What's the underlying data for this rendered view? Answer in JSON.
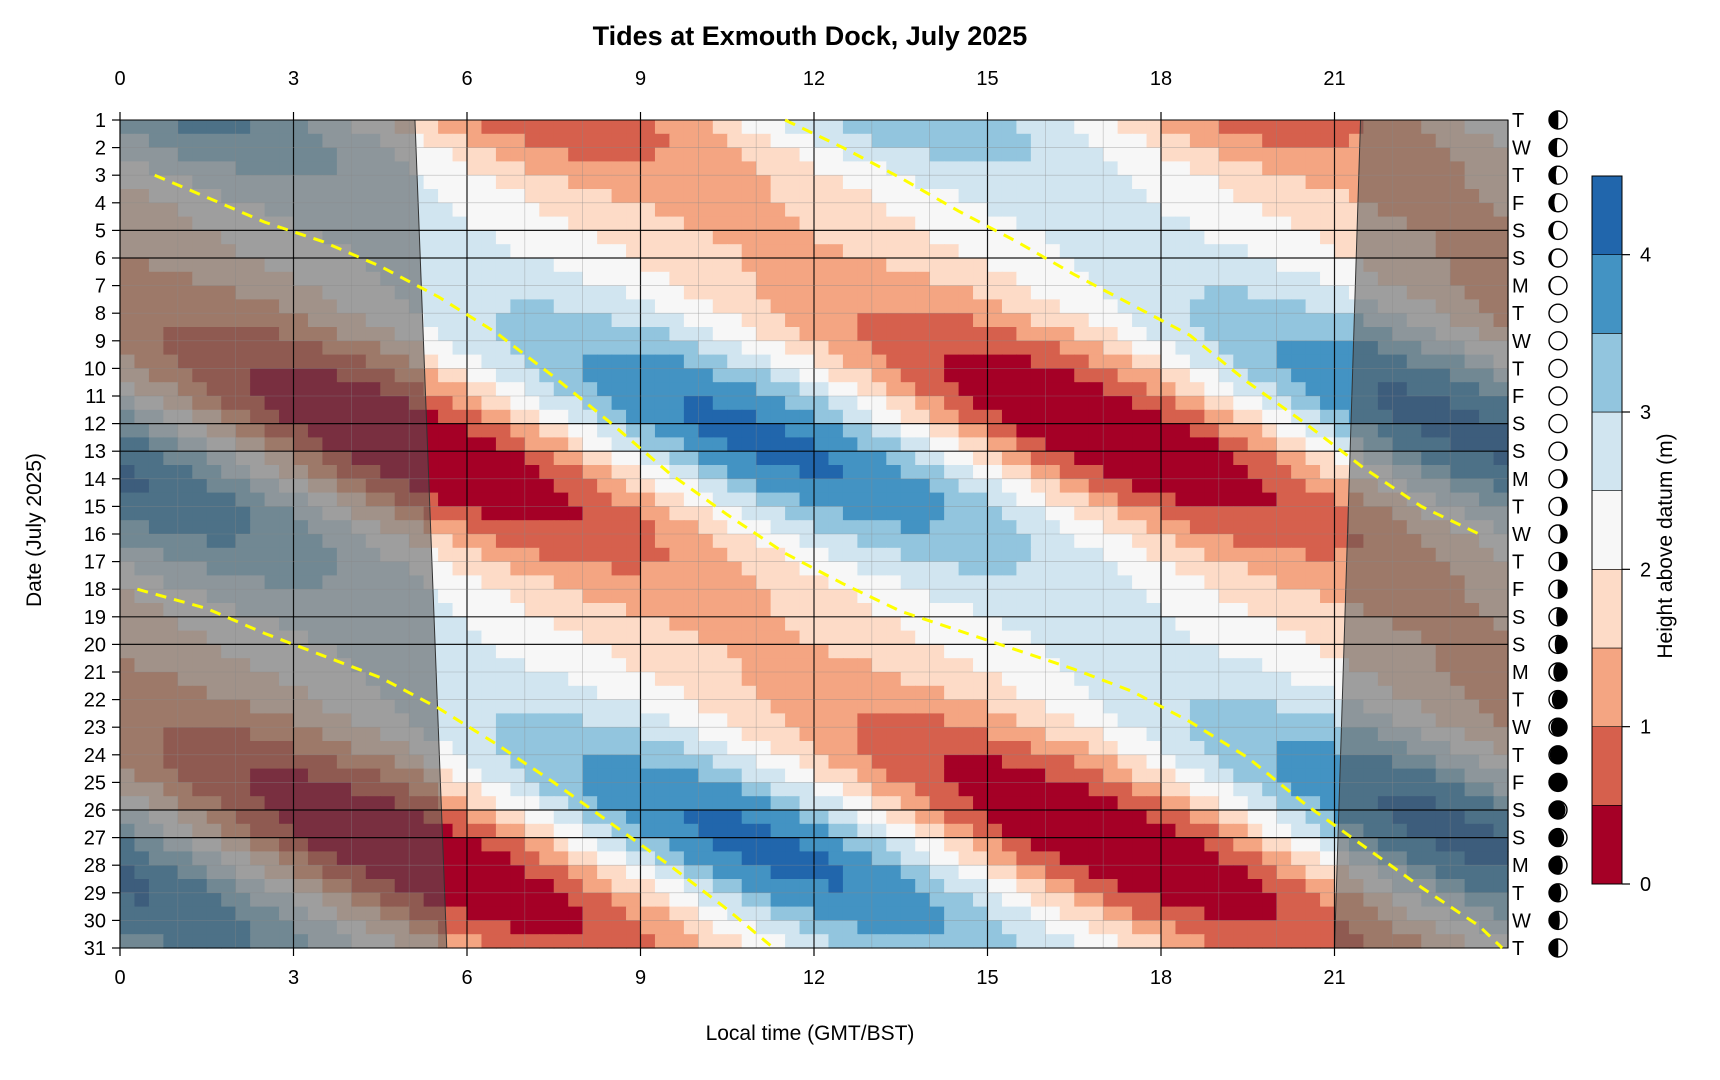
{
  "chart_data": {
    "type": "heatmap",
    "title": "Tides at Exmouth Dock, July 2025",
    "xlabel": "Local time (GMT/BST)",
    "ylabel": "Date (July 2025)",
    "xlim": [
      0,
      24
    ],
    "ylim": [
      1,
      31
    ],
    "x_ticks": [
      0,
      3,
      6,
      9,
      12,
      15,
      18,
      21
    ],
    "y_ticks": [
      1,
      2,
      3,
      4,
      5,
      6,
      7,
      8,
      9,
      10,
      11,
      12,
      13,
      14,
      15,
      16,
      17,
      18,
      19,
      20,
      21,
      22,
      23,
      24,
      25,
      26,
      27,
      28,
      29,
      30,
      31
    ],
    "weekdays": [
      "T",
      "W",
      "T",
      "F",
      "S",
      "S",
      "M",
      "T",
      "W",
      "T",
      "F",
      "S",
      "S",
      "M",
      "T",
      "W",
      "T",
      "F",
      "S",
      "S",
      "M",
      "T",
      "W",
      "T",
      "F",
      "S",
      "S",
      "M",
      "T",
      "W",
      "T"
    ],
    "moon_phase": [
      0.24,
      0.28,
      0.31,
      0.35,
      0.39,
      0.43,
      0.46,
      0.49,
      0.52,
      0.5,
      0.5,
      0.49,
      0.55,
      0.6,
      0.64,
      0.68,
      0.72,
      0.76,
      0.8,
      0.84,
      0.88,
      0.92,
      0.95,
      0.98,
      1.0,
      0.04,
      0.08,
      0.12,
      0.16,
      0.2,
      0.24
    ],
    "legend": {
      "title": "Height above datum (m)",
      "placement": "right",
      "levels": [
        0,
        0.5,
        1,
        1.5,
        2,
        2.5,
        3,
        3.5,
        4,
        4.5
      ],
      "tick_labels": [
        0,
        1,
        2,
        3,
        4
      ],
      "colors": [
        "#a50026",
        "#d6604d",
        "#f4a582",
        "#fddbc7",
        "#f7f7f7",
        "#d1e5f0",
        "#92c5de",
        "#4393c3",
        "#2166ac"
      ]
    },
    "night_shading": {
      "sunset": [
        [
          1,
          21.45
        ],
        [
          31,
          21.0
        ]
      ],
      "sunrise": [
        [
          1,
          5.1
        ],
        [
          31,
          5.65
        ]
      ],
      "color": "#555555"
    },
    "high_water_lines": [
      {
        "color": "#ffff00",
        "points": [
          [
            0.6,
            3
          ],
          [
            1.5,
            3.8
          ],
          [
            2.5,
            4.7
          ],
          [
            3.5,
            5.4
          ],
          [
            4.5,
            6.3
          ],
          [
            5.5,
            7.4
          ],
          [
            6.5,
            8.7
          ],
          [
            7.5,
            10.3
          ],
          [
            8.5,
            12
          ],
          [
            9.5,
            13.8
          ],
          [
            10.5,
            15.3
          ],
          [
            11.5,
            16.7
          ],
          [
            12.5,
            17.8
          ],
          [
            13.5,
            18.8
          ],
          [
            14.5,
            19.5
          ],
          [
            15.5,
            20.2
          ],
          [
            16.5,
            20.9
          ],
          [
            17.5,
            21.7
          ],
          [
            18.5,
            22.8
          ],
          [
            19.5,
            24.1
          ],
          [
            20.5,
            25.8
          ],
          [
            21.5,
            27.3
          ],
          [
            22.5,
            28.8
          ],
          [
            23.5,
            30.2
          ],
          [
            23.9,
            31
          ]
        ]
      },
      {
        "color": "#ffff00",
        "points": [
          [
            11.5,
            1
          ],
          [
            12.5,
            2
          ],
          [
            13.5,
            3.1
          ],
          [
            14.5,
            4.3
          ],
          [
            15.5,
            5.4
          ],
          [
            16.5,
            6.6
          ],
          [
            17.5,
            7.7
          ],
          [
            18.5,
            8.8
          ],
          [
            19.5,
            10.5
          ],
          [
            20.5,
            12
          ],
          [
            21.5,
            13.6
          ],
          [
            22.5,
            15
          ],
          [
            23.5,
            16
          ]
        ]
      },
      {
        "color": "#ffff00",
        "points": [
          [
            0.3,
            18
          ],
          [
            1.5,
            18.7
          ],
          [
            2.5,
            19.6
          ],
          [
            3.5,
            20.4
          ],
          [
            4.5,
            21.2
          ],
          [
            5.5,
            22.3
          ],
          [
            6.5,
            23.6
          ],
          [
            7.5,
            25
          ],
          [
            8.5,
            26.5
          ],
          [
            9.5,
            28
          ],
          [
            10.5,
            29.6
          ],
          [
            11.3,
            31
          ]
        ]
      }
    ]
  }
}
